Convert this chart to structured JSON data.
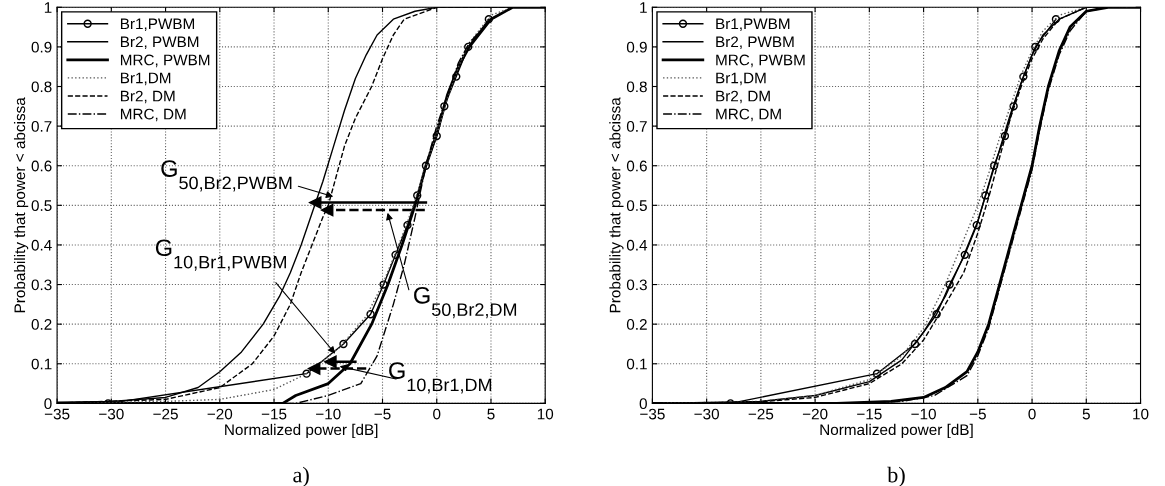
{
  "chart_data": [
    {
      "type": "line",
      "xlabel": "Normalized power [dB]",
      "ylabel": "Probability that power < abcissa",
      "xlim": [
        -35,
        10
      ],
      "ylim": [
        0,
        1
      ],
      "xticks": [
        {
          "value": -35,
          "label": "−35"
        },
        {
          "value": -30,
          "label": "−30"
        },
        {
          "value": -25,
          "label": "−25"
        },
        {
          "value": -20,
          "label": "−20"
        },
        {
          "value": -15,
          "label": "−15"
        },
        {
          "value": -10,
          "label": "−10"
        },
        {
          "value": -5,
          "label": "−5"
        },
        0,
        5,
        10
      ],
      "yticks": [
        0,
        0.1,
        0.2,
        0.3,
        0.4,
        0.5,
        0.6,
        0.7,
        0.8,
        0.9,
        1
      ],
      "grid": true,
      "legend": "top left",
      "series": [
        {
          "name": "Br1,PWBM",
          "color": "#000000",
          "marker": "circle",
          "line_style": "solid",
          "x": [
            -30.3,
            -12,
            -8.6,
            -6.1,
            -4.9,
            -3.8,
            -2.7,
            -1.8,
            -1,
            0,
            0.7,
            1.8,
            2.9,
            4.8
          ],
          "values": [
            0,
            0.075,
            0.15,
            0.225,
            0.3,
            0.375,
            0.45,
            0.525,
            0.6,
            0.675,
            0.75,
            0.825,
            0.9,
            0.97
          ]
        },
        {
          "name": "Br2, PWBM",
          "color": "#000000",
          "line_style": "solid",
          "x": [
            -35,
            -30,
            -25,
            -22,
            -20,
            -18,
            -16,
            -14.5,
            -13.5,
            -12.5,
            -11.5,
            -10.5,
            -9.5,
            -8.5,
            -7.5,
            -6.5,
            -5.5,
            -4,
            -2,
            0,
            10
          ],
          "values": [
            0.003,
            0.005,
            0.015,
            0.04,
            0.08,
            0.13,
            0.2,
            0.27,
            0.33,
            0.4,
            0.48,
            0.56,
            0.65,
            0.74,
            0.82,
            0.88,
            0.93,
            0.97,
            0.99,
            1,
            1
          ]
        },
        {
          "name": "MRC, PWBM",
          "color": "#000000",
          "line_style": "solid",
          "x": [
            -35,
            -14.2,
            -13,
            -10,
            -8,
            -6,
            -4.5,
            -3.2,
            -2,
            -1,
            0,
            1,
            2,
            3,
            5,
            7,
            10
          ],
          "values": [
            0,
            0,
            0.02,
            0.05,
            0.1,
            0.2,
            0.3,
            0.4,
            0.5,
            0.6,
            0.68,
            0.78,
            0.85,
            0.9,
            0.97,
            1,
            1
          ]
        },
        {
          "name": "Br1,DM",
          "color": "#555555",
          "line_style": "dotted",
          "x": [
            -34,
            -25,
            -20,
            -15,
            -12,
            -9,
            -6.5,
            -5,
            -3.8,
            -2.8,
            -1.8,
            -1,
            0,
            1,
            2,
            3,
            5,
            7
          ],
          "values": [
            0,
            0.005,
            0.01,
            0.035,
            0.075,
            0.14,
            0.22,
            0.3,
            0.38,
            0.45,
            0.53,
            0.6,
            0.68,
            0.77,
            0.85,
            0.91,
            0.98,
            1
          ]
        },
        {
          "name": "Br2, DM",
          "color": "#000000",
          "line_style": "dashed",
          "x": [
            -34,
            -25,
            -20,
            -17,
            -15,
            -13.5,
            -12.5,
            -11.5,
            -10.5,
            -10,
            -9.2,
            -8.5,
            -7.5,
            -6,
            -5,
            -4,
            -3,
            -1,
            0,
            9
          ],
          "values": [
            0.002,
            0.01,
            0.04,
            0.1,
            0.17,
            0.25,
            0.33,
            0.4,
            0.47,
            0.5,
            0.58,
            0.65,
            0.72,
            0.8,
            0.87,
            0.93,
            0.97,
            0.99,
            1,
            1
          ]
        },
        {
          "name": "MRC, DM",
          "color": "#000000",
          "line_style": "dashdot",
          "x": [
            -33,
            -13,
            -10,
            -7,
            -5.5,
            -4,
            -3,
            -2,
            -1,
            0,
            1,
            2,
            3,
            5,
            7,
            8.5
          ],
          "values": [
            0,
            0,
            0.02,
            0.05,
            0.12,
            0.25,
            0.35,
            0.47,
            0.6,
            0.7,
            0.78,
            0.86,
            0.91,
            0.97,
            1,
            1
          ]
        },
        {
          "color": "#000000",
          "line_style": "solid",
          "x": [
            -1,
            -11.2
          ],
          "values": [
            0.507,
            0.507
          ]
        },
        {
          "color": "#000000",
          "line_style": "dashed",
          "x": [
            -1.1,
            -10.1
          ],
          "values": [
            0.488,
            0.488
          ]
        },
        {
          "color": "#000000",
          "line_style": "solid",
          "x": [
            -7.5,
            -9.8
          ],
          "values": [
            0.105,
            0.105
          ]
        },
        {
          "color": "#000000",
          "line_style": "dashed",
          "x": [
            -6.5,
            -11.3
          ],
          "values": [
            0.088,
            0.088
          ]
        }
      ],
      "annotations": [
        {
          "text": "G$_{50,Br2,PWBM}$",
          "x": -9.3,
          "y": 0.52
        },
        {
          "text": "G$_{50,Br2,DM}$",
          "x": -4.6,
          "y": 0.488
        },
        {
          "text": "G$_{10,Br1,PWBM}$",
          "x": -9.2,
          "y": 0.12
        },
        {
          "text": "G$_{10,Br1,DM}$",
          "x": -9.2,
          "y": 0.095
        },
        "a)"
      ]
    },
    {
      "type": "line",
      "xlabel": "Normalized power [dB]",
      "ylabel": "Probability that power < abcissa",
      "xlim": [
        -35,
        10
      ],
      "ylim": [
        0,
        1
      ],
      "xticks": [
        {
          "value": -35,
          "label": "−35"
        },
        {
          "value": -30,
          "label": "−30"
        },
        {
          "value": -25,
          "label": "−25"
        },
        {
          "value": -20,
          "label": "−20"
        },
        {
          "value": -15,
          "label": "−15"
        },
        {
          "value": -10,
          "label": "−10"
        },
        {
          "value": -5,
          "label": "−5"
        },
        0,
        5,
        10
      ],
      "yticks": [
        0,
        0.1,
        0.2,
        0.3,
        0.4,
        0.5,
        0.6,
        0.7,
        0.8,
        0.9,
        1
      ],
      "grid": true,
      "legend": "top left",
      "series": [
        {
          "name": "Br1,PWBM",
          "color": "#000000",
          "marker": "circle",
          "line_style": "solid",
          "x": [
            -27.8,
            -14.3,
            -10.8,
            -8.8,
            -7.6,
            -6.2,
            -5.1,
            -4.3,
            -3.5,
            -2.5,
            -1.7,
            -0.8,
            0.3,
            2.2
          ],
          "values": [
            0,
            0.075,
            0.15,
            0.225,
            0.3,
            0.375,
            0.45,
            0.525,
            0.6,
            0.675,
            0.75,
            0.825,
            0.9,
            0.97
          ]
        },
        {
          "name": "Br2, PWBM",
          "color": "#000000",
          "line_style": "solid",
          "x": [
            -35,
            -25,
            -20,
            -15,
            -12,
            -10,
            -8,
            -6.5,
            -5,
            -4,
            -3,
            -2,
            -1,
            0,
            1,
            2.5,
            5,
            10
          ],
          "values": [
            0,
            0.005,
            0.02,
            0.055,
            0.11,
            0.18,
            0.27,
            0.36,
            0.46,
            0.55,
            0.64,
            0.73,
            0.81,
            0.88,
            0.93,
            0.97,
            1,
            1
          ]
        },
        {
          "name": "MRC, PWBM",
          "color": "#000000",
          "line_style": "solid",
          "x": [
            -35,
            -18,
            -13,
            -10,
            -8,
            -6,
            -5,
            -4,
            -3,
            -2,
            -1,
            0,
            0.7,
            1.5,
            2.5,
            3.5,
            5,
            7,
            10
          ],
          "values": [
            0,
            0,
            0.005,
            0.015,
            0.04,
            0.08,
            0.13,
            0.2,
            0.3,
            0.4,
            0.5,
            0.6,
            0.7,
            0.8,
            0.89,
            0.95,
            0.99,
            1,
            1
          ]
        },
        {
          "name": "Br1,DM",
          "color": "#555555",
          "line_style": "dotted",
          "x": [
            -34,
            -25,
            -20,
            -15,
            -12,
            -10,
            -8,
            -6.5,
            -5,
            -4,
            -3,
            -2,
            -1,
            0,
            1,
            2.5,
            5,
            9
          ],
          "values": [
            0,
            0.005,
            0.02,
            0.06,
            0.12,
            0.19,
            0.3,
            0.4,
            0.5,
            0.58,
            0.67,
            0.75,
            0.83,
            0.89,
            0.94,
            0.98,
            1,
            1
          ]
        },
        {
          "name": "Br2, DM",
          "color": "#000000",
          "line_style": "dashed",
          "x": [
            -33,
            -25,
            -20,
            -15,
            -12,
            -10,
            -8,
            -6.3,
            -5,
            -4,
            -3,
            -2,
            -1,
            0,
            1,
            2.5,
            5,
            8.5
          ],
          "values": [
            0,
            0.004,
            0.015,
            0.05,
            0.1,
            0.16,
            0.25,
            0.33,
            0.43,
            0.52,
            0.62,
            0.72,
            0.8,
            0.87,
            0.92,
            0.97,
            1,
            1
          ]
        },
        {
          "name": "MRC, DM",
          "color": "#000000",
          "line_style": "dashdot",
          "x": [
            -32,
            -16,
            -12,
            -9,
            -6,
            -5,
            -4,
            -3,
            -2,
            -1,
            0,
            0.7,
            1.5,
            2.5,
            3.5,
            5,
            7,
            8
          ],
          "values": [
            0,
            0,
            0.005,
            0.02,
            0.07,
            0.12,
            0.19,
            0.29,
            0.39,
            0.49,
            0.59,
            0.69,
            0.79,
            0.88,
            0.94,
            0.99,
            1,
            1
          ]
        }
      ],
      "annotations": [
        "b)"
      ]
    }
  ]
}
